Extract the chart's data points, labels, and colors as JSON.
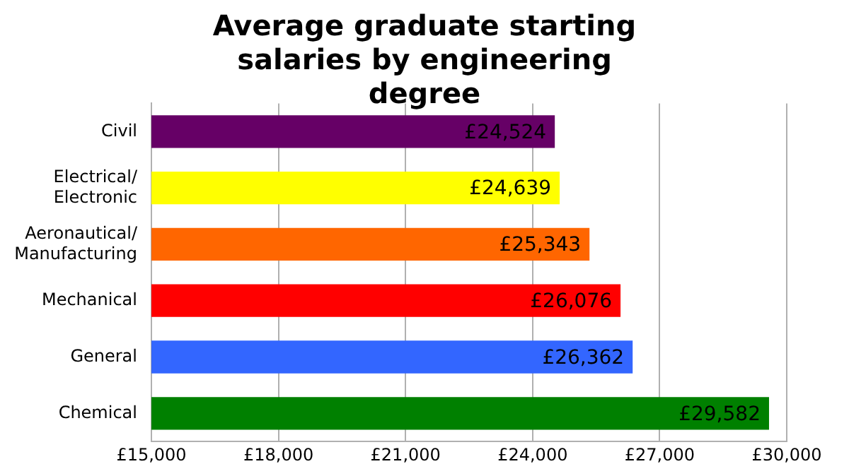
{
  "chart_data": {
    "type": "bar",
    "orientation": "horizontal",
    "title": "Average graduate starting salaries by engineering degree",
    "categories": [
      "Civil",
      "Electrical/ Electronic",
      "Aeronautical/ Manufacturing",
      "Mechanical",
      "General",
      "Chemical"
    ],
    "values": [
      24524,
      24639,
      25343,
      26076,
      26362,
      29582
    ],
    "colors": [
      "#660066",
      "#ffff00",
      "#ff6600",
      "#ff0000",
      "#3366ff",
      "#008000"
    ],
    "value_labels": [
      "£24,524",
      "£24,639",
      "£25,343",
      "£26,076",
      "£26,362",
      "£29,582"
    ],
    "xlim": [
      15000,
      30000
    ],
    "xticks": [
      {
        "value": 15000,
        "label": "£15,000"
      },
      {
        "value": 18000,
        "label": "£18,000"
      },
      {
        "value": 21000,
        "label": "£21,000"
      },
      {
        "value": 24000,
        "label": "£24,000"
      },
      {
        "value": 27000,
        "label": "£27,000"
      },
      {
        "value": 30000,
        "label": "£30,000"
      }
    ],
    "grid": "x",
    "legend": false
  }
}
